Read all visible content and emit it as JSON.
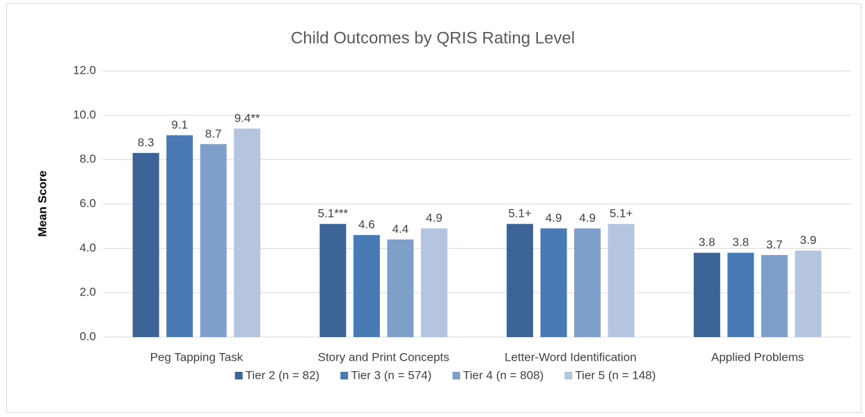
{
  "chart_data": {
    "type": "bar",
    "title": "Child Outcomes by QRIS Rating Level",
    "y_label": "Mean Score",
    "categories": [
      "Peg Tapping Task",
      "Story and Print Concepts",
      "Letter-Word Identification",
      "Applied Problems"
    ],
    "series": [
      {
        "name": "Tier 2 (n = 82)",
        "color": "#3d6496",
        "values": [
          8.3,
          5.1,
          5.1,
          3.8
        ],
        "value_labels": [
          "8.3",
          "5.1***",
          "5.1+",
          "3.8"
        ]
      },
      {
        "name": "Tier 3 (n = 574)",
        "color": "#4a7ab5",
        "values": [
          9.1,
          4.6,
          4.9,
          3.8
        ],
        "value_labels": [
          "9.1",
          "4.6",
          "4.9",
          "3.8"
        ]
      },
      {
        "name": "Tier 4 (n = 808)",
        "color": "#7f9fcb",
        "values": [
          8.7,
          4.4,
          4.9,
          3.7
        ],
        "value_labels": [
          "8.7",
          "4.4",
          "4.9",
          "3.7"
        ]
      },
      {
        "name": "Tier 5 (n = 148)",
        "color": "#b5c5e0",
        "values": [
          9.4,
          4.9,
          5.1,
          3.9
        ],
        "value_labels": [
          "9.4**",
          "4.9",
          "5.1+",
          "3.9"
        ]
      }
    ],
    "ylim": [
      0,
      12
    ],
    "yticks": [
      {
        "value": 0,
        "label": "0.0"
      },
      {
        "value": 2,
        "label": "2.0"
      },
      {
        "value": 4,
        "label": "4.0"
      },
      {
        "value": 6,
        "label": "6.0"
      },
      {
        "value": 8,
        "label": "8.0"
      },
      {
        "value": 10,
        "label": "10.0"
      },
      {
        "value": 12,
        "label": "12.0"
      }
    ],
    "grid": true,
    "legend": "bottom"
  }
}
